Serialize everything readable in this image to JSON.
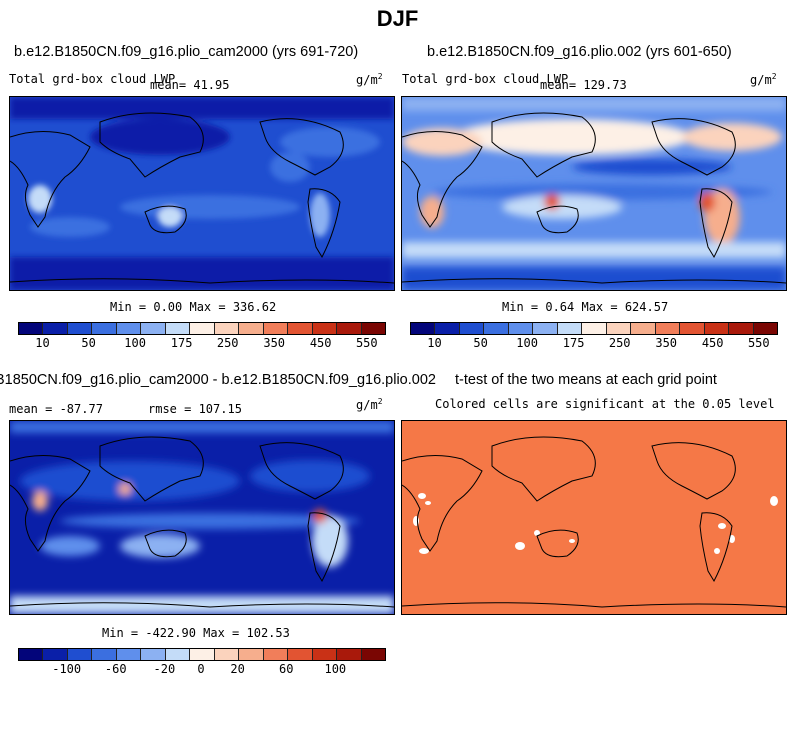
{
  "page_title": "DJF",
  "panels": [
    {
      "title": "b.e12.B1850CN.f09_g16.plio_cam2000 (yrs 691-720)",
      "subtitle": "Total grd-box cloud LWP",
      "stat": "mean=  41.95",
      "units": "g/m",
      "units_exp": "2",
      "minmax": "Min =   0.00 Max = 336.62",
      "colorbar_ticks": [
        "10",
        "50",
        "100",
        "175",
        "250",
        "350",
        "450",
        "550"
      ],
      "colorbar_colors": [
        "#03057a",
        "#0a1fa8",
        "#1f4ed0",
        "#3b6fe0",
        "#5f8fec",
        "#8cb1f2",
        "#c4dcf8",
        "#fdf0e6",
        "#fbd3bd",
        "#f6ae8d",
        "#f17e5a",
        "#e25432",
        "#c93116",
        "#a9190b",
        "#7a0603"
      ]
    },
    {
      "title": "b.e12.B1850CN.f09_g16.plio.002 (yrs 601-650)",
      "subtitle": "Total grd-box cloud LWP",
      "stat": "mean= 129.73",
      "units": "g/m",
      "units_exp": "2",
      "minmax": "Min =   0.64 Max = 624.57",
      "colorbar_ticks": [
        "10",
        "50",
        "100",
        "175",
        "250",
        "350",
        "450",
        "550"
      ]
    },
    {
      "title": "B1850CN.f09_g16.plio_cam2000 - b.e12.B1850CN.f09_g16.plio.002",
      "stat": "mean = -87.77",
      "rmse": "rmse = 107.15",
      "units": "g/m",
      "units_exp": "2",
      "minmax": "Min = -422.90 Max = 102.53",
      "colorbar_ticks": [
        "-100",
        "-60",
        "-20",
        "0",
        "20",
        "60",
        "100"
      ]
    },
    {
      "title": "t-test of the two means at each grid point",
      "subtitle": "Colored cells are significant at the 0.05 level",
      "fill_color": "#f57847"
    }
  ]
}
